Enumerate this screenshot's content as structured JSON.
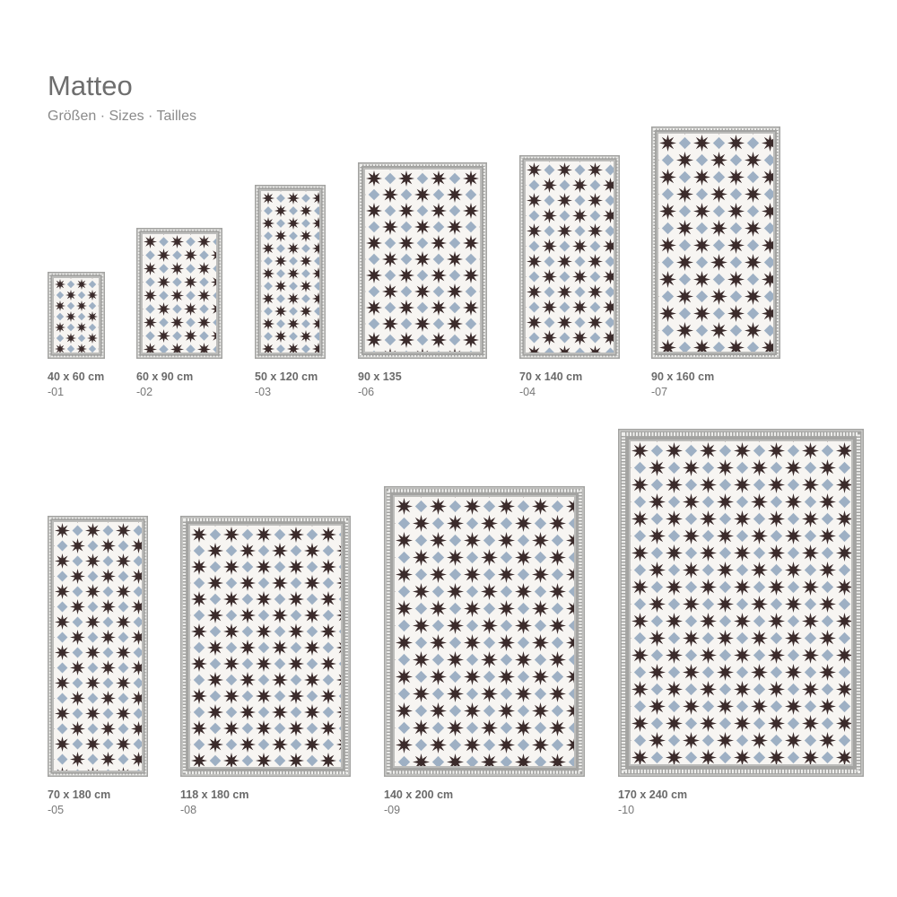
{
  "title": "Matteo",
  "subtitle": "Größen · Sizes · Tailles",
  "colors": {
    "star": "#3b2b2b",
    "diamond": "#9eb0c4",
    "background": "#f7f5f2",
    "border": "#a3a3a1"
  },
  "rugs": [
    {
      "size": "40 x 60 cm",
      "code": "-01"
    },
    {
      "size": "60 x 90 cm",
      "code": "-02"
    },
    {
      "size": "50 x 120 cm",
      "code": "-03"
    },
    {
      "size": "90 x 135",
      "code": "-06"
    },
    {
      "size": "70 x 140 cm",
      "code": "-04"
    },
    {
      "size": "90 x 160 cm",
      "code": "-07"
    },
    {
      "size": "70 x 180 cm",
      "code": "-05"
    },
    {
      "size": "118 x 180 cm",
      "code": "-08"
    },
    {
      "size": "140 x 200 cm",
      "code": "-09"
    },
    {
      "size": "170 x 240 cm",
      "code": "-10"
    }
  ]
}
